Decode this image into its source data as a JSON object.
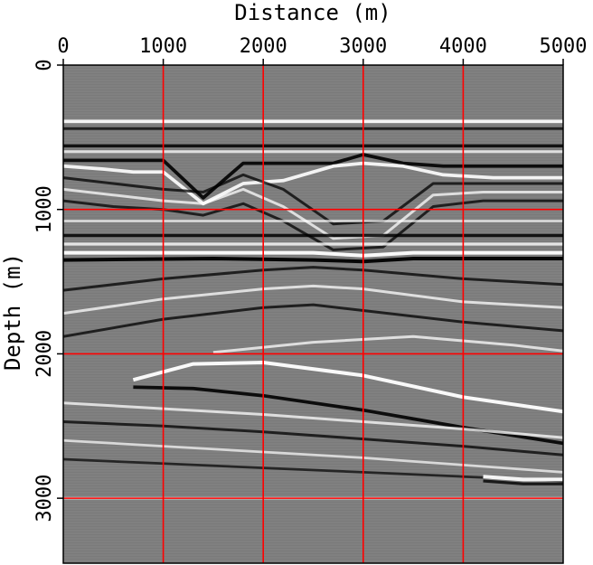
{
  "chart_data": {
    "type": "heatmap",
    "title": "",
    "xlabel": "Distance (m)",
    "ylabel": "Depth (m)",
    "xlim": [
      0,
      5000
    ],
    "ylim": [
      0,
      3450
    ],
    "y_inverted": true,
    "x_axis_position": "top",
    "xticks": [
      0,
      1000,
      2000,
      3000,
      4000,
      5000
    ],
    "yticks": [
      0,
      1000,
      2000,
      3000
    ],
    "grid": true,
    "grid_color": "#ff0000",
    "colormap": "grayscale seismic amplitude image",
    "reflectors": [
      {
        "x": [
          0,
          5000
        ],
        "y": [
          390,
          390
        ],
        "polarity": "white",
        "strength": 0.9
      },
      {
        "x": [
          0,
          5000
        ],
        "y": [
          440,
          440
        ],
        "polarity": "black",
        "strength": 0.6
      },
      {
        "x": [
          0,
          5000
        ],
        "y": [
          560,
          560
        ],
        "polarity": "black",
        "strength": 0.8
      },
      {
        "x": [
          0,
          5000
        ],
        "y": [
          600,
          600
        ],
        "polarity": "white",
        "strength": 0.6
      },
      {
        "x": [
          0,
          400,
          700,
          1000,
          1400,
          1800,
          2200,
          2700,
          3000,
          3400,
          3800,
          4300,
          5000
        ],
        "y": [
          660,
          660,
          660,
          660,
          920,
          680,
          680,
          680,
          620,
          680,
          700,
          700,
          700
        ],
        "polarity": "black",
        "strength": 0.9
      },
      {
        "x": [
          0,
          400,
          700,
          1000,
          1400,
          1800,
          2200,
          2700,
          3000,
          3400,
          3800,
          4300,
          5000
        ],
        "y": [
          700,
          720,
          740,
          740,
          960,
          820,
          800,
          700,
          680,
          700,
          760,
          780,
          780
        ],
        "polarity": "white",
        "strength": 0.9
      },
      {
        "x": [
          0,
          500,
          1000,
          1400,
          1800,
          2200,
          2700,
          3200,
          3700,
          4200,
          5000
        ],
        "y": [
          780,
          820,
          860,
          880,
          760,
          860,
          1100,
          1080,
          820,
          820,
          820
        ],
        "polarity": "black",
        "strength": 0.6
      },
      {
        "x": [
          0,
          500,
          1000,
          1400,
          1800,
          2200,
          2700,
          3200,
          3700,
          4200,
          5000
        ],
        "y": [
          860,
          900,
          940,
          960,
          860,
          980,
          1200,
          1180,
          900,
          880,
          880
        ],
        "polarity": "white",
        "strength": 0.6
      },
      {
        "x": [
          0,
          500,
          1000,
          1400,
          1800,
          2200,
          2700,
          3200,
          3700,
          4200,
          5000
        ],
        "y": [
          940,
          980,
          1000,
          1040,
          960,
          1080,
          1280,
          1260,
          980,
          940,
          940
        ],
        "polarity": "black",
        "strength": 0.6
      },
      {
        "x": [
          0,
          5000
        ],
        "y": [
          1080,
          1080
        ],
        "polarity": "white",
        "strength": 0.5
      },
      {
        "x": [
          0,
          5000
        ],
        "y": [
          1180,
          1180
        ],
        "polarity": "black",
        "strength": 0.8
      },
      {
        "x": [
          0,
          5000
        ],
        "y": [
          1240,
          1240
        ],
        "polarity": "white",
        "strength": 0.7
      },
      {
        "x": [
          0,
          1500,
          2500,
          3000,
          3500,
          5000
        ],
        "y": [
          1300,
          1300,
          1300,
          1320,
          1300,
          1300
        ],
        "polarity": "white",
        "strength": 1.0
      },
      {
        "x": [
          0,
          1500,
          2500,
          3000,
          3500,
          5000
        ],
        "y": [
          1350,
          1340,
          1350,
          1360,
          1340,
          1340
        ],
        "polarity": "black",
        "strength": 1.0
      },
      {
        "x": [
          0,
          1000,
          2000,
          2500,
          3000,
          4000,
          5000
        ],
        "y": [
          1560,
          1480,
          1420,
          1400,
          1420,
          1480,
          1520
        ],
        "polarity": "black",
        "strength": 0.6
      },
      {
        "x": [
          0,
          1000,
          2000,
          2500,
          3000,
          4000,
          5000
        ],
        "y": [
          1720,
          1620,
          1550,
          1530,
          1550,
          1640,
          1680
        ],
        "polarity": "white",
        "strength": 0.6
      },
      {
        "x": [
          0,
          1000,
          2000,
          2500,
          3000,
          4000,
          5000
        ],
        "y": [
          1880,
          1760,
          1680,
          1660,
          1700,
          1780,
          1840
        ],
        "polarity": "black",
        "strength": 0.6
      },
      {
        "x": [
          1500,
          2500,
          3500,
          4500,
          5000
        ],
        "y": [
          1990,
          1920,
          1880,
          1940,
          1980
        ],
        "polarity": "white",
        "strength": 0.6
      },
      {
        "x": [
          700,
          1300,
          2000,
          3000,
          4000,
          5000
        ],
        "y": [
          2180,
          2070,
          2060,
          2150,
          2300,
          2400
        ],
        "polarity": "white",
        "strength": 1.0
      },
      {
        "x": [
          700,
          1300,
          2000,
          3000,
          4000,
          5000
        ],
        "y": [
          2230,
          2240,
          2290,
          2390,
          2510,
          2620
        ],
        "polarity": "black",
        "strength": 0.9
      },
      {
        "x": [
          0,
          1000,
          2000,
          3000,
          4000,
          5000
        ],
        "y": [
          2340,
          2380,
          2420,
          2470,
          2520,
          2580
        ],
        "polarity": "white",
        "strength": 0.6
      },
      {
        "x": [
          0,
          1000,
          2000,
          3000,
          4000,
          5000
        ],
        "y": [
          2470,
          2500,
          2540,
          2590,
          2640,
          2700
        ],
        "polarity": "black",
        "strength": 0.6
      },
      {
        "x": [
          0,
          1000,
          2000,
          3000,
          4000,
          5000
        ],
        "y": [
          2600,
          2640,
          2680,
          2720,
          2770,
          2820
        ],
        "polarity": "white",
        "strength": 0.5
      },
      {
        "x": [
          0,
          1000,
          2000,
          3000,
          4000,
          5000
        ],
        "y": [
          2730,
          2760,
          2790,
          2820,
          2850,
          2880
        ],
        "polarity": "black",
        "strength": 0.5
      },
      {
        "x": [
          4200,
          4600,
          5000
        ],
        "y": [
          2850,
          2870,
          2870
        ],
        "polarity": "white",
        "strength": 1.0
      },
      {
        "x": [
          4200,
          4600,
          5000
        ],
        "y": [
          2880,
          2900,
          2900
        ],
        "polarity": "black",
        "strength": 0.7
      },
      {
        "x": [
          0,
          5000
        ],
        "y": [
          3000,
          3000
        ],
        "polarity": "white",
        "strength": 0.5
      }
    ]
  }
}
